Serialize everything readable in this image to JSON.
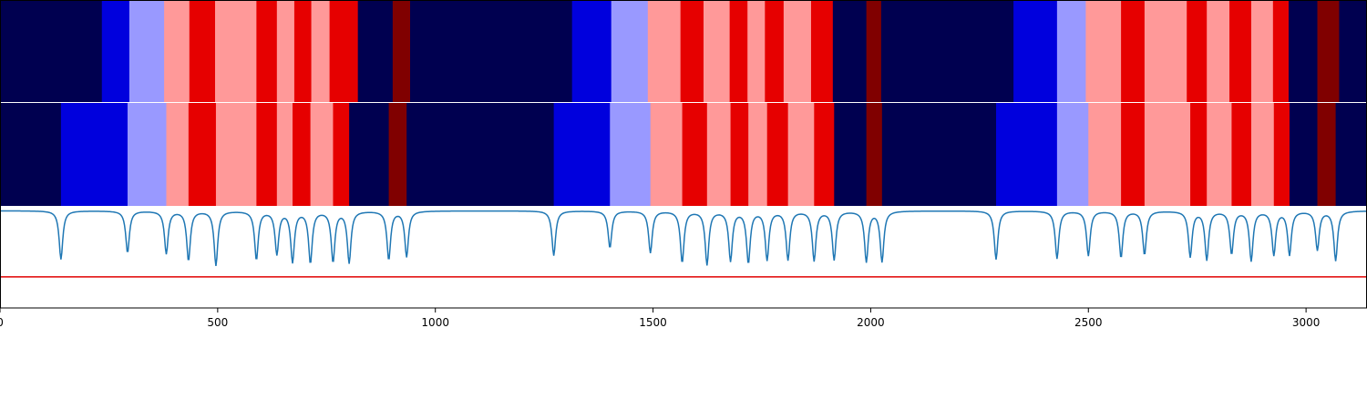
{
  "chart_data": {
    "type": "heatmap",
    "x_range": [
      0,
      3140
    ],
    "x_ticks": [
      0,
      500,
      1000,
      1500,
      2000,
      2500,
      3000
    ],
    "x_tick_labels": [
      "0",
      "500",
      "1000",
      "1500",
      "2000",
      "2500",
      "3000"
    ],
    "palette": {
      "navy": "#000050",
      "blue": "#0000dd",
      "lightblue": "#9999ff",
      "pink": "#ff9999",
      "red": "#e60000",
      "maroon": "#800000"
    },
    "rows": [
      {
        "segments": [
          [
            0,
            234,
            "navy"
          ],
          [
            234,
            297,
            "blue"
          ],
          [
            297,
            377,
            "lightblue"
          ],
          [
            377,
            435,
            "pink"
          ],
          [
            435,
            494,
            "red"
          ],
          [
            494,
            589,
            "pink"
          ],
          [
            589,
            636,
            "red"
          ],
          [
            636,
            676,
            "pink"
          ],
          [
            676,
            715,
            "red"
          ],
          [
            715,
            757,
            "pink"
          ],
          [
            757,
            822,
            "red"
          ],
          [
            822,
            902,
            "navy"
          ],
          [
            902,
            942,
            "maroon"
          ],
          [
            942,
            1314,
            "navy"
          ],
          [
            1314,
            1404,
            "blue"
          ],
          [
            1404,
            1488,
            "lightblue"
          ],
          [
            1488,
            1563,
            "pink"
          ],
          [
            1563,
            1616,
            "red"
          ],
          [
            1616,
            1676,
            "pink"
          ],
          [
            1676,
            1717,
            "red"
          ],
          [
            1717,
            1757,
            "pink"
          ],
          [
            1757,
            1800,
            "red"
          ],
          [
            1800,
            1863,
            "pink"
          ],
          [
            1863,
            1913,
            "red"
          ],
          [
            1913,
            1990,
            "navy"
          ],
          [
            1990,
            2024,
            "maroon"
          ],
          [
            2024,
            2328,
            "navy"
          ],
          [
            2328,
            2428,
            "blue"
          ],
          [
            2428,
            2494,
            "lightblue"
          ],
          [
            2494,
            2575,
            "pink"
          ],
          [
            2575,
            2629,
            "red"
          ],
          [
            2629,
            2726,
            "pink"
          ],
          [
            2726,
            2772,
            "red"
          ],
          [
            2772,
            2824,
            "pink"
          ],
          [
            2824,
            2874,
            "red"
          ],
          [
            2874,
            2924,
            "pink"
          ],
          [
            2924,
            2960,
            "red"
          ],
          [
            2960,
            3026,
            "navy"
          ],
          [
            3026,
            3076,
            "maroon"
          ],
          [
            3076,
            3140,
            "navy"
          ]
        ]
      },
      {
        "segments": [
          [
            0,
            140,
            "navy"
          ],
          [
            140,
            293,
            "blue"
          ],
          [
            293,
            382,
            "lightblue"
          ],
          [
            382,
            433,
            "pink"
          ],
          [
            433,
            496,
            "red"
          ],
          [
            496,
            589,
            "pink"
          ],
          [
            589,
            636,
            "red"
          ],
          [
            636,
            672,
            "pink"
          ],
          [
            672,
            713,
            "red"
          ],
          [
            713,
            765,
            "pink"
          ],
          [
            765,
            802,
            "red"
          ],
          [
            802,
            893,
            "navy"
          ],
          [
            893,
            934,
            "maroon"
          ],
          [
            934,
            1272,
            "navy"
          ],
          [
            1272,
            1401,
            "blue"
          ],
          [
            1401,
            1494,
            "lightblue"
          ],
          [
            1494,
            1567,
            "pink"
          ],
          [
            1567,
            1624,
            "red"
          ],
          [
            1624,
            1678,
            "pink"
          ],
          [
            1678,
            1719,
            "red"
          ],
          [
            1719,
            1762,
            "pink"
          ],
          [
            1762,
            1810,
            "red"
          ],
          [
            1810,
            1870,
            "pink"
          ],
          [
            1870,
            1916,
            "red"
          ],
          [
            1916,
            1990,
            "navy"
          ],
          [
            1990,
            2026,
            "maroon"
          ],
          [
            2026,
            2288,
            "navy"
          ],
          [
            2288,
            2428,
            "blue"
          ],
          [
            2428,
            2500,
            "lightblue"
          ],
          [
            2500,
            2575,
            "pink"
          ],
          [
            2575,
            2629,
            "red"
          ],
          [
            2629,
            2734,
            "pink"
          ],
          [
            2734,
            2772,
            "red"
          ],
          [
            2772,
            2829,
            "pink"
          ],
          [
            2829,
            2874,
            "red"
          ],
          [
            2874,
            2926,
            "pink"
          ],
          [
            2926,
            2962,
            "red"
          ],
          [
            2962,
            3026,
            "navy"
          ],
          [
            3026,
            3068,
            "maroon"
          ],
          [
            3068,
            3140,
            "navy"
          ]
        ]
      }
    ],
    "line_series": {
      "color": "#1f77b4",
      "y_range": [
        -1,
        0.05
      ],
      "baseline": 0,
      "threshold": {
        "value": -0.68,
        "color": "#e00000"
      },
      "dips": [
        [
          140,
          0.5
        ],
        [
          293,
          0.43
        ],
        [
          382,
          0.44
        ],
        [
          433,
          0.51
        ],
        [
          496,
          0.56
        ],
        [
          589,
          0.5
        ],
        [
          636,
          0.44
        ],
        [
          672,
          0.52
        ],
        [
          713,
          0.53
        ],
        [
          765,
          0.52
        ],
        [
          802,
          0.53
        ],
        [
          893,
          0.5
        ],
        [
          934,
          0.47
        ],
        [
          1272,
          0.46
        ],
        [
          1401,
          0.38
        ],
        [
          1494,
          0.43
        ],
        [
          1567,
          0.53
        ],
        [
          1624,
          0.55
        ],
        [
          1678,
          0.51
        ],
        [
          1719,
          0.53
        ],
        [
          1762,
          0.5
        ],
        [
          1810,
          0.5
        ],
        [
          1870,
          0.51
        ],
        [
          1916,
          0.5
        ],
        [
          1990,
          0.52
        ],
        [
          2026,
          0.52
        ],
        [
          2288,
          0.5
        ],
        [
          2428,
          0.49
        ],
        [
          2500,
          0.46
        ],
        [
          2575,
          0.48
        ],
        [
          2629,
          0.45
        ],
        [
          2734,
          0.47
        ],
        [
          2772,
          0.5
        ],
        [
          2829,
          0.44
        ],
        [
          2874,
          0.51
        ],
        [
          2926,
          0.45
        ],
        [
          2962,
          0.45
        ],
        [
          3026,
          0.4
        ],
        [
          3068,
          0.51
        ]
      ]
    }
  }
}
